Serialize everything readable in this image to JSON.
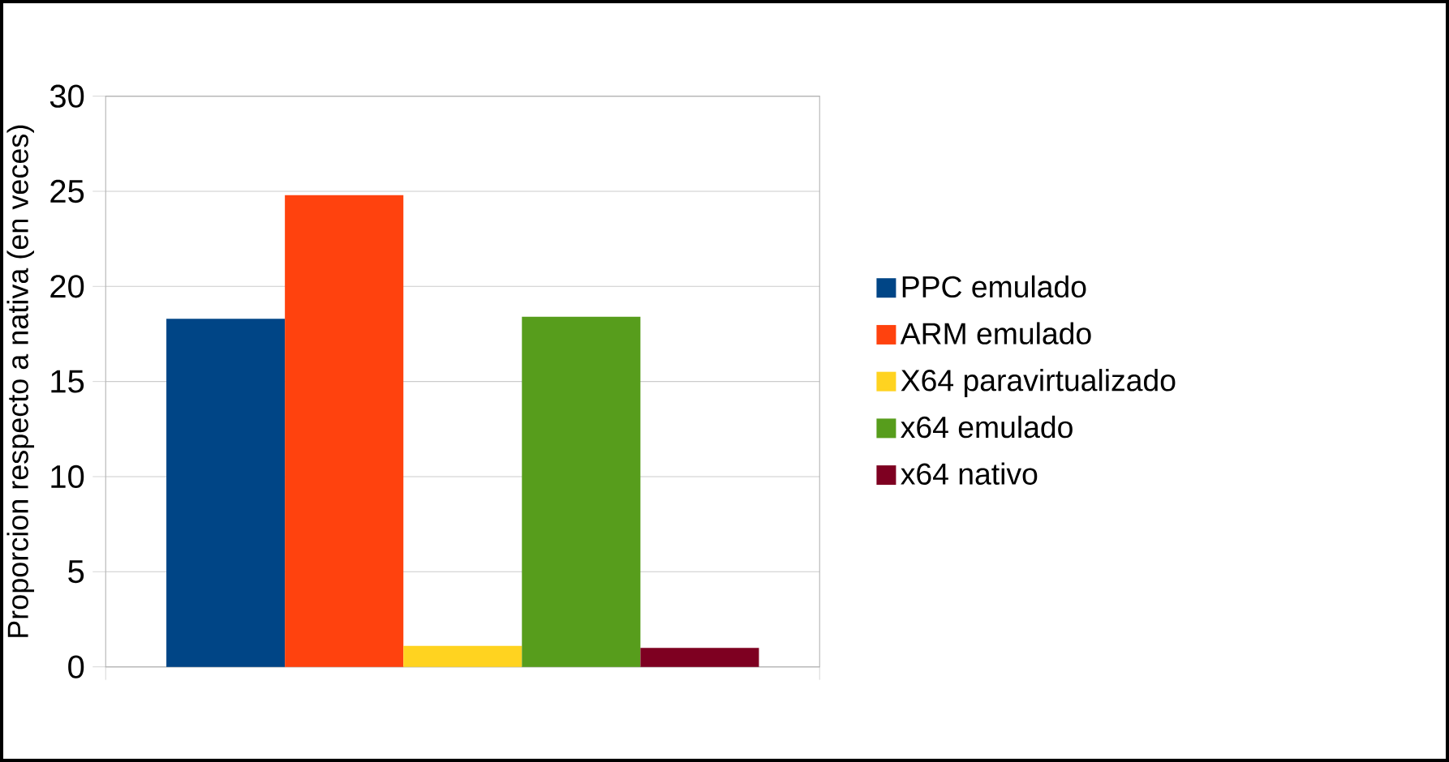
{
  "chart_data": {
    "type": "bar",
    "ylabel": "Proporcion respecto a nativa (en veces)",
    "categories": [
      null
    ],
    "series": [
      {
        "name": "PPC emulado",
        "color": "#004586",
        "values": [
          18.3
        ]
      },
      {
        "name": "ARM emulado",
        "color": "#ff420e",
        "values": [
          24.8
        ]
      },
      {
        "name": "X64 paravirtualizado",
        "color": "#ffd320",
        "values": [
          1.1
        ]
      },
      {
        "name": "x64 emulado",
        "color": "#579d1c",
        "values": [
          18.4
        ]
      },
      {
        "name": "x64 nativo",
        "color": "#7e0021",
        "values": [
          1.0
        ]
      }
    ],
    "ylim": [
      0,
      30
    ],
    "yticks": [
      0,
      5,
      10,
      15,
      20,
      25,
      30
    ],
    "grid": "y",
    "legend": "right",
    "tick_labels": "y"
  }
}
